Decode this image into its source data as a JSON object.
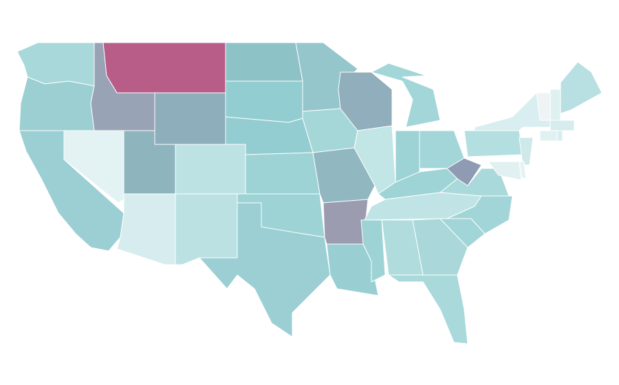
{
  "map": {
    "regions": [
      {
        "color": "#a8d8da"
      },
      {
        "color": "#9ccfd2"
      },
      {
        "color": "#9ccfd4"
      },
      {
        "color": "#e3f2f3"
      },
      {
        "color": "#98a3b5"
      },
      {
        "color": "#b85d87"
      },
      {
        "color": "#8eaebb"
      },
      {
        "color": "#8eb5bd"
      },
      {
        "color": "#d6ecee"
      },
      {
        "color": "#bde2e4"
      },
      {
        "color": "#bce1e3"
      },
      {
        "color": "#8dc2c6"
      },
      {
        "color": "#91cdd1"
      },
      {
        "color": "#94cdd1"
      },
      {
        "color": "#9dd3d5"
      },
      {
        "color": "#9dd3d5"
      },
      {
        "color": "#9ccfd3"
      },
      {
        "color": "#95c6cb"
      },
      {
        "color": "#a5d7d9"
      },
      {
        "color": "#91b7c0"
      },
      {
        "color": "#9b9caf"
      },
      {
        "color": "#99cfd3"
      },
      {
        "color": "#90aebb"
      },
      {
        "color": "#c2e5e6"
      },
      {
        "color": "#a2d6d8"
      },
      {
        "color": "#9dd3d5"
      },
      {
        "color": "#a3d6d8"
      },
      {
        "color": "#9ed4d6"
      },
      {
        "color": "#c0e4e5"
      },
      {
        "color": "#9dd3d5"
      },
      {
        "color": "#b1dcde"
      },
      {
        "color": "#aad8da"
      },
      {
        "color": "#a9d9db"
      },
      {
        "color": "#a1d5d7"
      },
      {
        "color": "#a2d5d7"
      },
      {
        "color": "#a9d9da"
      },
      {
        "color": "#8e9bb3"
      },
      {
        "color": "#b3dfe0"
      },
      {
        "color": "#d8eef0"
      },
      {
        "color": "#f0f3f5"
      },
      {
        "color": "#dff0f1"
      },
      {
        "color": "#b8dfe1"
      },
      {
        "color": "#d6ecee"
      },
      {
        "color": "#e0f1f2"
      },
      {
        "color": "#d8eef0"
      },
      {
        "color": "#cfe9ea"
      },
      {
        "color": "#e1f1f2"
      },
      {
        "color": "#e4f3f3"
      }
    ]
  }
}
